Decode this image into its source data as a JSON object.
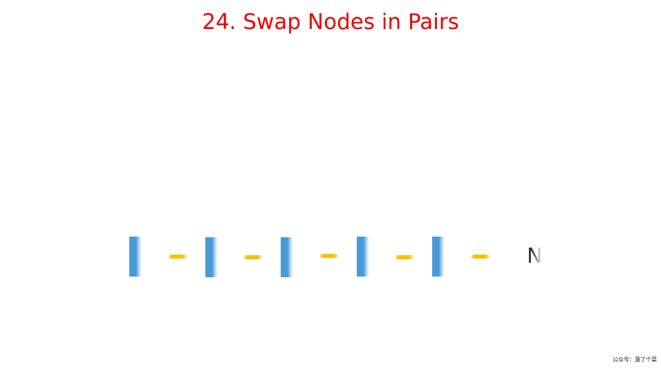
{
  "title": "24. Swap Nodes in Pairs",
  "linked_list": {
    "nodes": [
      {
        "label": ""
      },
      {
        "label": ""
      },
      {
        "label": ""
      },
      {
        "label": ""
      },
      {
        "label": ""
      }
    ],
    "terminal_label": "N"
  },
  "watermark": "公众号：菠了个菜",
  "colors": {
    "title": "#ee0000",
    "node": "#4a9ad6",
    "arrow": "#fcc000",
    "text": "#333333"
  }
}
